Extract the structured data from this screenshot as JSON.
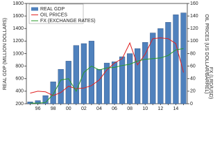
{
  "chart_data": {
    "type": "bar-line",
    "categories": [
      null,
      "96",
      null,
      "98",
      null,
      "00",
      null,
      "02",
      null,
      "04",
      null,
      "06",
      null,
      "08",
      null,
      "10",
      null,
      "12",
      null,
      "14",
      null
    ],
    "series": [
      {
        "name": "REAL GDP",
        "type": "bar",
        "color": "#4f81bd",
        "values": [
          230,
          250,
          330,
          550,
          750,
          880,
          1130,
          1160,
          1200,
          750,
          850,
          870,
          950,
          1000,
          1080,
          1180,
          1330,
          1400,
          1500,
          1620,
          1650
        ]
      },
      {
        "name": "OIL PRICES",
        "type": "line",
        "axis": "y2",
        "color": "#e02020",
        "values": [
          17,
          20,
          19,
          13,
          18,
          28,
          24,
          25,
          29,
          38,
          54,
          65,
          72,
          97,
          62,
          79,
          104,
          105,
          104,
          96,
          50
        ]
      },
      {
        "name": "FX (EXCHANGE RATES)",
        "type": "line",
        "axis": "y2",
        "color": "#2a9a2a",
        "values": [
          1,
          1,
          2,
          15,
          38,
          40,
          20,
          50,
          60,
          54,
          57,
          58,
          61,
          63,
          68,
          71,
          72,
          73,
          77,
          86,
          88
        ]
      }
    ],
    "ylabel": "REAL GDP (MILLION DOLLARS)",
    "y2label": [
      "OIL PRICES (US DOLLAR/BARREL)",
      "FX (LRD/USD)"
    ],
    "ylim": [
      200,
      1800
    ],
    "yticks": [
      200,
      400,
      600,
      800,
      1000,
      1200,
      1400,
      1600,
      1800
    ],
    "y2lim": [
      0,
      160
    ],
    "y2ticks": [
      0,
      20,
      40,
      60,
      80,
      100,
      120,
      140,
      160
    ],
    "legend": "upper left"
  }
}
